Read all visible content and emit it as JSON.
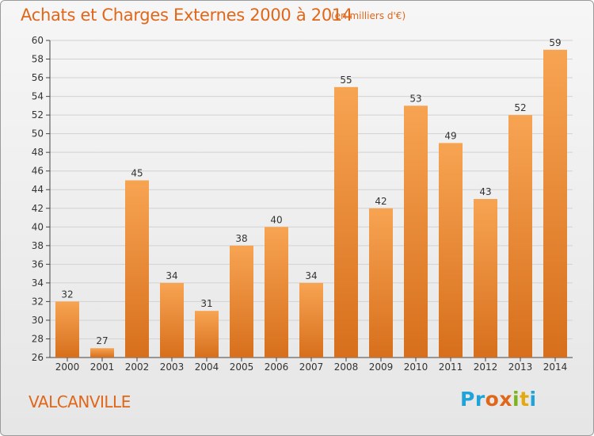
{
  "chart_data": {
    "type": "bar",
    "title": "Achats et Charges Externes 2000 à 2014",
    "subtitle": "(en milliers d'€)",
    "categories": [
      "2000",
      "2001",
      "2002",
      "2003",
      "2004",
      "2005",
      "2006",
      "2007",
      "2008",
      "2009",
      "2010",
      "2011",
      "2012",
      "2013",
      "2014"
    ],
    "values": [
      32,
      27,
      45,
      34,
      31,
      38,
      40,
      34,
      55,
      42,
      53,
      49,
      43,
      52,
      59
    ],
    "ylim": [
      26,
      60
    ],
    "yticks": [
      26,
      28,
      30,
      32,
      34,
      36,
      38,
      40,
      42,
      44,
      46,
      48,
      50,
      52,
      54,
      56,
      58,
      60
    ],
    "grid": true,
    "bar_color_top": "#f7a452",
    "bar_color_bottom": "#d76f1c"
  },
  "footer": {
    "commune": "VALCANVILLE",
    "logo": [
      "P",
      "r",
      "o",
      "x",
      "i",
      "t",
      "i"
    ],
    "logo_colors": [
      "#1fa3d8",
      "#1fa3d8",
      "#e0671a",
      "#e0671a",
      "#7ab51d",
      "#e4a812",
      "#1fa3d8"
    ]
  }
}
